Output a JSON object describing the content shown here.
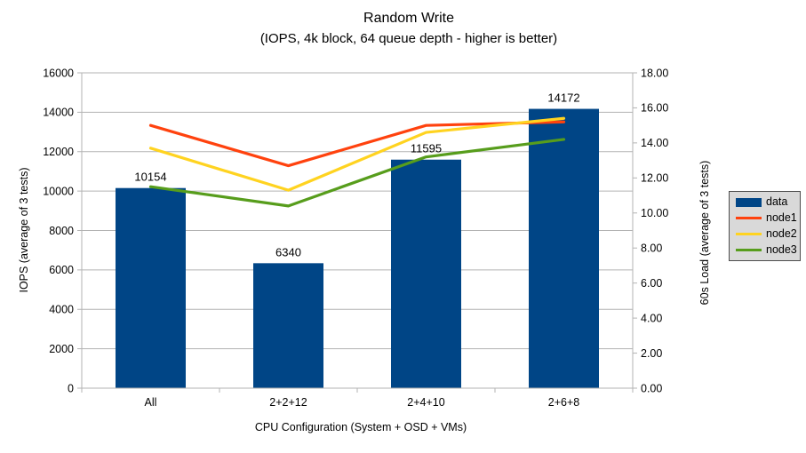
{
  "chart_data": {
    "type": "combo-bar-line",
    "title": "Random Write",
    "subtitle": "(IOPS, 4k block, 64 queue depth - higher is better)",
    "xlabel": "CPU Configuration (System + OSD + VMs)",
    "ylabel_left": "IOPS (average of 3 tests)",
    "ylabel_right": "60s Load (average of 3 tests)",
    "categories": [
      "All",
      "2+2+12",
      "2+4+10",
      "2+6+8"
    ],
    "bar_series": {
      "name": "data",
      "color": "#004586",
      "axis": "left",
      "values": [
        10154,
        6340,
        11595,
        14172
      ],
      "labels": [
        "10154",
        "6340",
        "11595",
        "14172"
      ]
    },
    "line_series": [
      {
        "name": "node1",
        "color": "#FF420E",
        "axis": "right",
        "values": [
          15.0,
          12.7,
          15.0,
          15.2
        ]
      },
      {
        "name": "node2",
        "color": "#FFD320",
        "axis": "right",
        "values": [
          13.7,
          11.3,
          14.6,
          15.4
        ]
      },
      {
        "name": "node3",
        "color": "#579D1C",
        "axis": "right",
        "values": [
          11.5,
          10.4,
          13.2,
          14.2
        ]
      }
    ],
    "left_axis": {
      "min": 0,
      "max": 16000,
      "step": 2000,
      "tick_labels": [
        "0",
        "2000",
        "4000",
        "6000",
        "8000",
        "10000",
        "12000",
        "14000",
        "16000"
      ]
    },
    "right_axis": {
      "min": 0,
      "max": 18,
      "step": 2,
      "tick_labels": [
        "0.00",
        "2.00",
        "4.00",
        "6.00",
        "8.00",
        "10.00",
        "12.00",
        "14.00",
        "16.00",
        "18.00"
      ]
    },
    "grid": true,
    "legend": {
      "position": "right",
      "items": [
        {
          "label": "data",
          "color": "#004586",
          "type": "rect"
        },
        {
          "label": "node1",
          "color": "#FF420E",
          "type": "line"
        },
        {
          "label": "node2",
          "color": "#FFD320",
          "type": "line"
        },
        {
          "label": "node3",
          "color": "#579D1C",
          "type": "line"
        }
      ]
    }
  },
  "colors": {
    "background": "#ffffff",
    "grid": "#b3b3b3",
    "axis": "#b3b3b3",
    "text": "#000000",
    "legend_bg": "#d9d9d9",
    "legend_border": "#4d4d4d"
  }
}
